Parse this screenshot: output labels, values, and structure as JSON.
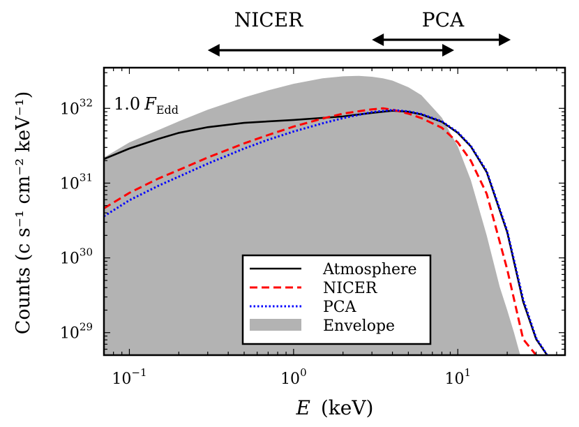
{
  "chart_data": {
    "type": "line",
    "x_scale": "log",
    "y_scale": "log",
    "xlim": [
      0.07,
      45
    ],
    "ylim": [
      5e+28,
      3.5e+32
    ],
    "xlabel_var": "E",
    "xlabel_unit": "(keV)",
    "ylabel": "Counts (c s⁻¹ cm⁻² keV⁻¹)",
    "x_ticks": [
      {
        "value": 0.1,
        "base": "10",
        "exp": "−1"
      },
      {
        "value": 1,
        "base": "10",
        "exp": "0"
      },
      {
        "value": 10,
        "base": "10",
        "exp": "1"
      }
    ],
    "y_ticks": [
      {
        "value": 1e+29,
        "base": "10",
        "exp": "29"
      },
      {
        "value": 1e+30,
        "base": "10",
        "exp": "30"
      },
      {
        "value": 1e+31,
        "base": "10",
        "exp": "31"
      },
      {
        "value": 1e+32,
        "base": "10",
        "exp": "32"
      }
    ],
    "annotation": {
      "prefix": "1.0",
      "var": "F",
      "sub": "Edd"
    },
    "instrument_ranges": [
      {
        "name": "NICER",
        "range_kev": [
          0.3,
          9.5
        ]
      },
      {
        "name": "PCA",
        "range_kev": [
          3.0,
          21
        ]
      }
    ],
    "legend_position": "lower-center",
    "series": [
      {
        "name": "Atmosphere",
        "style": "solid",
        "color": "#000000",
        "x": [
          0.07,
          0.1,
          0.15,
          0.2,
          0.3,
          0.5,
          1.0,
          2.0,
          3.0,
          4.0,
          5.0,
          6.0,
          8.0,
          10.0,
          12.0,
          15.0,
          20.0,
          25.0,
          30.0,
          35.0
        ],
        "y": [
          2.1e+31,
          2.9e+31,
          3.9e+31,
          4.7e+31,
          5.6e+31,
          6.4e+31,
          7e+31,
          7.8e+31,
          8.7e+31,
          9.3e+31,
          9e+31,
          8.3e+31,
          6.6e+31,
          4.7e+31,
          3.1e+31,
          1.4e+31,
          2.2e+30,
          2.6e+29,
          8.2e+28,
          5e+28
        ]
      },
      {
        "name": "NICER",
        "style": "dashed",
        "color": "#ff0000",
        "x": [
          0.07,
          0.1,
          0.15,
          0.2,
          0.3,
          0.5,
          0.7,
          1.0,
          1.5,
          2.0,
          3.0,
          3.5,
          4.0,
          5.0,
          6.0,
          8.0,
          10.0,
          12.0,
          15.0,
          20.0,
          25.0,
          30.0
        ],
        "y": [
          4.6e+30,
          7.4e+30,
          1.15e+31,
          1.5e+31,
          2.2e+31,
          3.4e+31,
          4.4e+31,
          5.7e+31,
          7.3e+31,
          8.5e+31,
          9.7e+31,
          1e+32,
          9.6e+31,
          8.5e+31,
          7.4e+31,
          5.5e+31,
          3.5e+31,
          2e+31,
          7.2e+30,
          7e+29,
          8.2e+28,
          5e+28
        ]
      },
      {
        "name": "PCA",
        "style": "dotted",
        "color": "#0000ff",
        "x": [
          0.07,
          0.1,
          0.15,
          0.2,
          0.3,
          0.5,
          0.7,
          1.0,
          1.5,
          2.0,
          3.0,
          4.0,
          5.0,
          6.0,
          8.0,
          10.0,
          12.0,
          15.0,
          20.0,
          25.0,
          30.0,
          35.0
        ],
        "y": [
          3.6e+30,
          5.9e+30,
          9.2e+30,
          1.22e+31,
          1.82e+31,
          2.9e+31,
          3.8e+31,
          4.9e+31,
          6.3e+31,
          7.4e+31,
          8.9e+31,
          9.5e+31,
          9.1e+31,
          8.4e+31,
          6.7e+31,
          4.8e+31,
          3.15e+31,
          1.45e+31,
          2.3e+30,
          2.8e+29,
          8.5e+28,
          5e+28
        ]
      },
      {
        "name": "Envelope",
        "style": "fill",
        "color": "#b3b3b3",
        "x": [
          0.07,
          0.1,
          0.2,
          0.3,
          0.5,
          0.7,
          1.0,
          1.5,
          2.0,
          2.5,
          3.0,
          3.5,
          4.0,
          5.0,
          6.0,
          8.0,
          10.0,
          12.0,
          15.0,
          18.0,
          20.0,
          22.0,
          24.0
        ],
        "y_upper": [
          2.2e+31,
          3.5e+31,
          6.7e+31,
          9.6e+31,
          1.4e+32,
          1.74e+32,
          2.13e+32,
          2.52e+32,
          2.68e+32,
          2.72e+32,
          2.65e+32,
          2.52e+32,
          2.35e+32,
          1.92e+32,
          1.5e+32,
          7.5e+31,
          3.1e+31,
          1.1e+31,
          2e+30,
          4.1e+29,
          2e+29,
          1e+29,
          5e+28
        ],
        "y_lower": [
          5e+28,
          5e+28,
          5e+28,
          5e+28,
          5e+28,
          5e+28,
          5e+28,
          5e+28,
          5e+28,
          5e+28,
          5e+28,
          5e+28,
          5e+28,
          5e+28,
          5e+28,
          5e+28,
          5e+28,
          5e+28,
          5e+28,
          5e+28,
          5e+28,
          5e+28,
          5e+28
        ]
      }
    ]
  }
}
